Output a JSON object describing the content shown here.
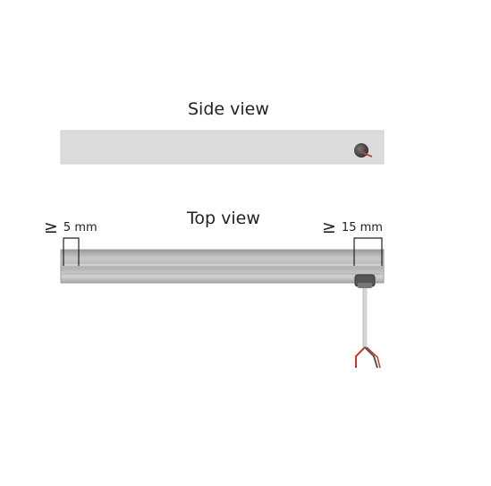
{
  "side_view": {
    "title": "Side view"
  },
  "top_view": {
    "title": "Top view",
    "left_clearance": {
      "symbol": "≥",
      "value": "5 mm"
    },
    "right_clearance": {
      "symbol": "≥",
      "value": "15 mm"
    }
  },
  "colors": {
    "profile_fill": "#dcdcdc",
    "profile_edge": "#c8c8c8",
    "top_profile_fill": "#bfbfbf",
    "cable_sheath": "#d9d9d9",
    "wire_red": "#c0392b",
    "wire_dark": "#555555"
  }
}
